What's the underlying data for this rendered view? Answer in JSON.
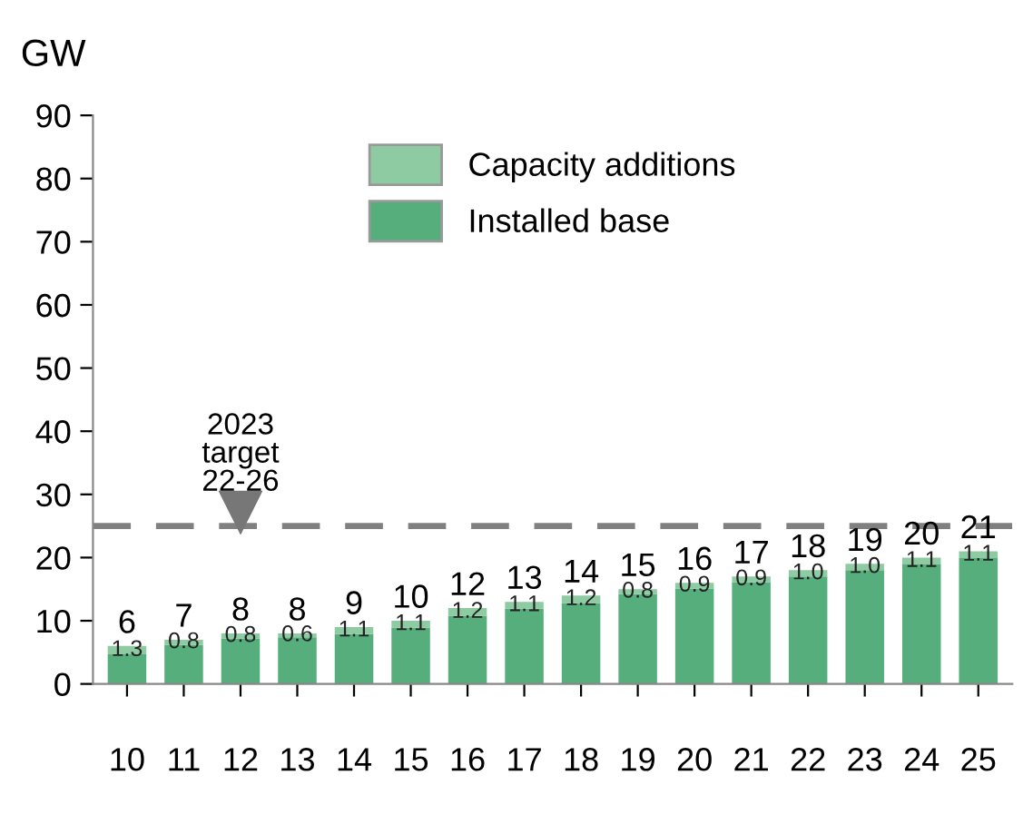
{
  "chart_data": {
    "type": "bar",
    "stacked": true,
    "ylabel": "GW",
    "categories": [
      "10",
      "11",
      "12",
      "13",
      "14",
      "15",
      "16",
      "17",
      "18",
      "19",
      "20",
      "21",
      "22",
      "23",
      "24",
      "25"
    ],
    "series": [
      {
        "name": "Installed base",
        "color": "#55ae7b",
        "values": [
          4.7,
          6.2,
          7.2,
          7.4,
          7.9,
          8.9,
          10.8,
          11.9,
          12.8,
          14.2,
          15.1,
          16.1,
          17.0,
          18.0,
          18.9,
          19.9
        ]
      },
      {
        "name": "Capacity additions",
        "color": "#8ecaa2",
        "values": [
          1.3,
          0.8,
          0.8,
          0.6,
          1.1,
          1.1,
          1.2,
          1.1,
          1.2,
          0.8,
          0.9,
          0.9,
          1.0,
          1.0,
          1.1,
          1.1
        ],
        "value_labels": [
          "1.3",
          "0.8",
          "0.8",
          "0.6",
          "1.1",
          "1.1",
          "1.2",
          "1.1",
          "1.2",
          "0.8",
          "0.9",
          "0.9",
          "1.0",
          "1.0",
          "1.1",
          "1.1"
        ]
      }
    ],
    "totals": [
      "6",
      "7",
      "8",
      "8",
      "9",
      "10",
      "12",
      "13",
      "14",
      "15",
      "16",
      "17",
      "18",
      "19",
      "20",
      "21"
    ],
    "ylim": [
      0,
      90
    ],
    "yticks": [
      0,
      10,
      20,
      30,
      40,
      50,
      60,
      70,
      80,
      90
    ],
    "ref_lines": [
      {
        "axis": "y",
        "value": 25,
        "color": "#808080",
        "line_style": "dashed"
      }
    ],
    "annotations": [
      {
        "text": "2023\ntarget\n22-26",
        "x": "12",
        "y": 25
      }
    ],
    "legend": "top",
    "grid": false
  }
}
